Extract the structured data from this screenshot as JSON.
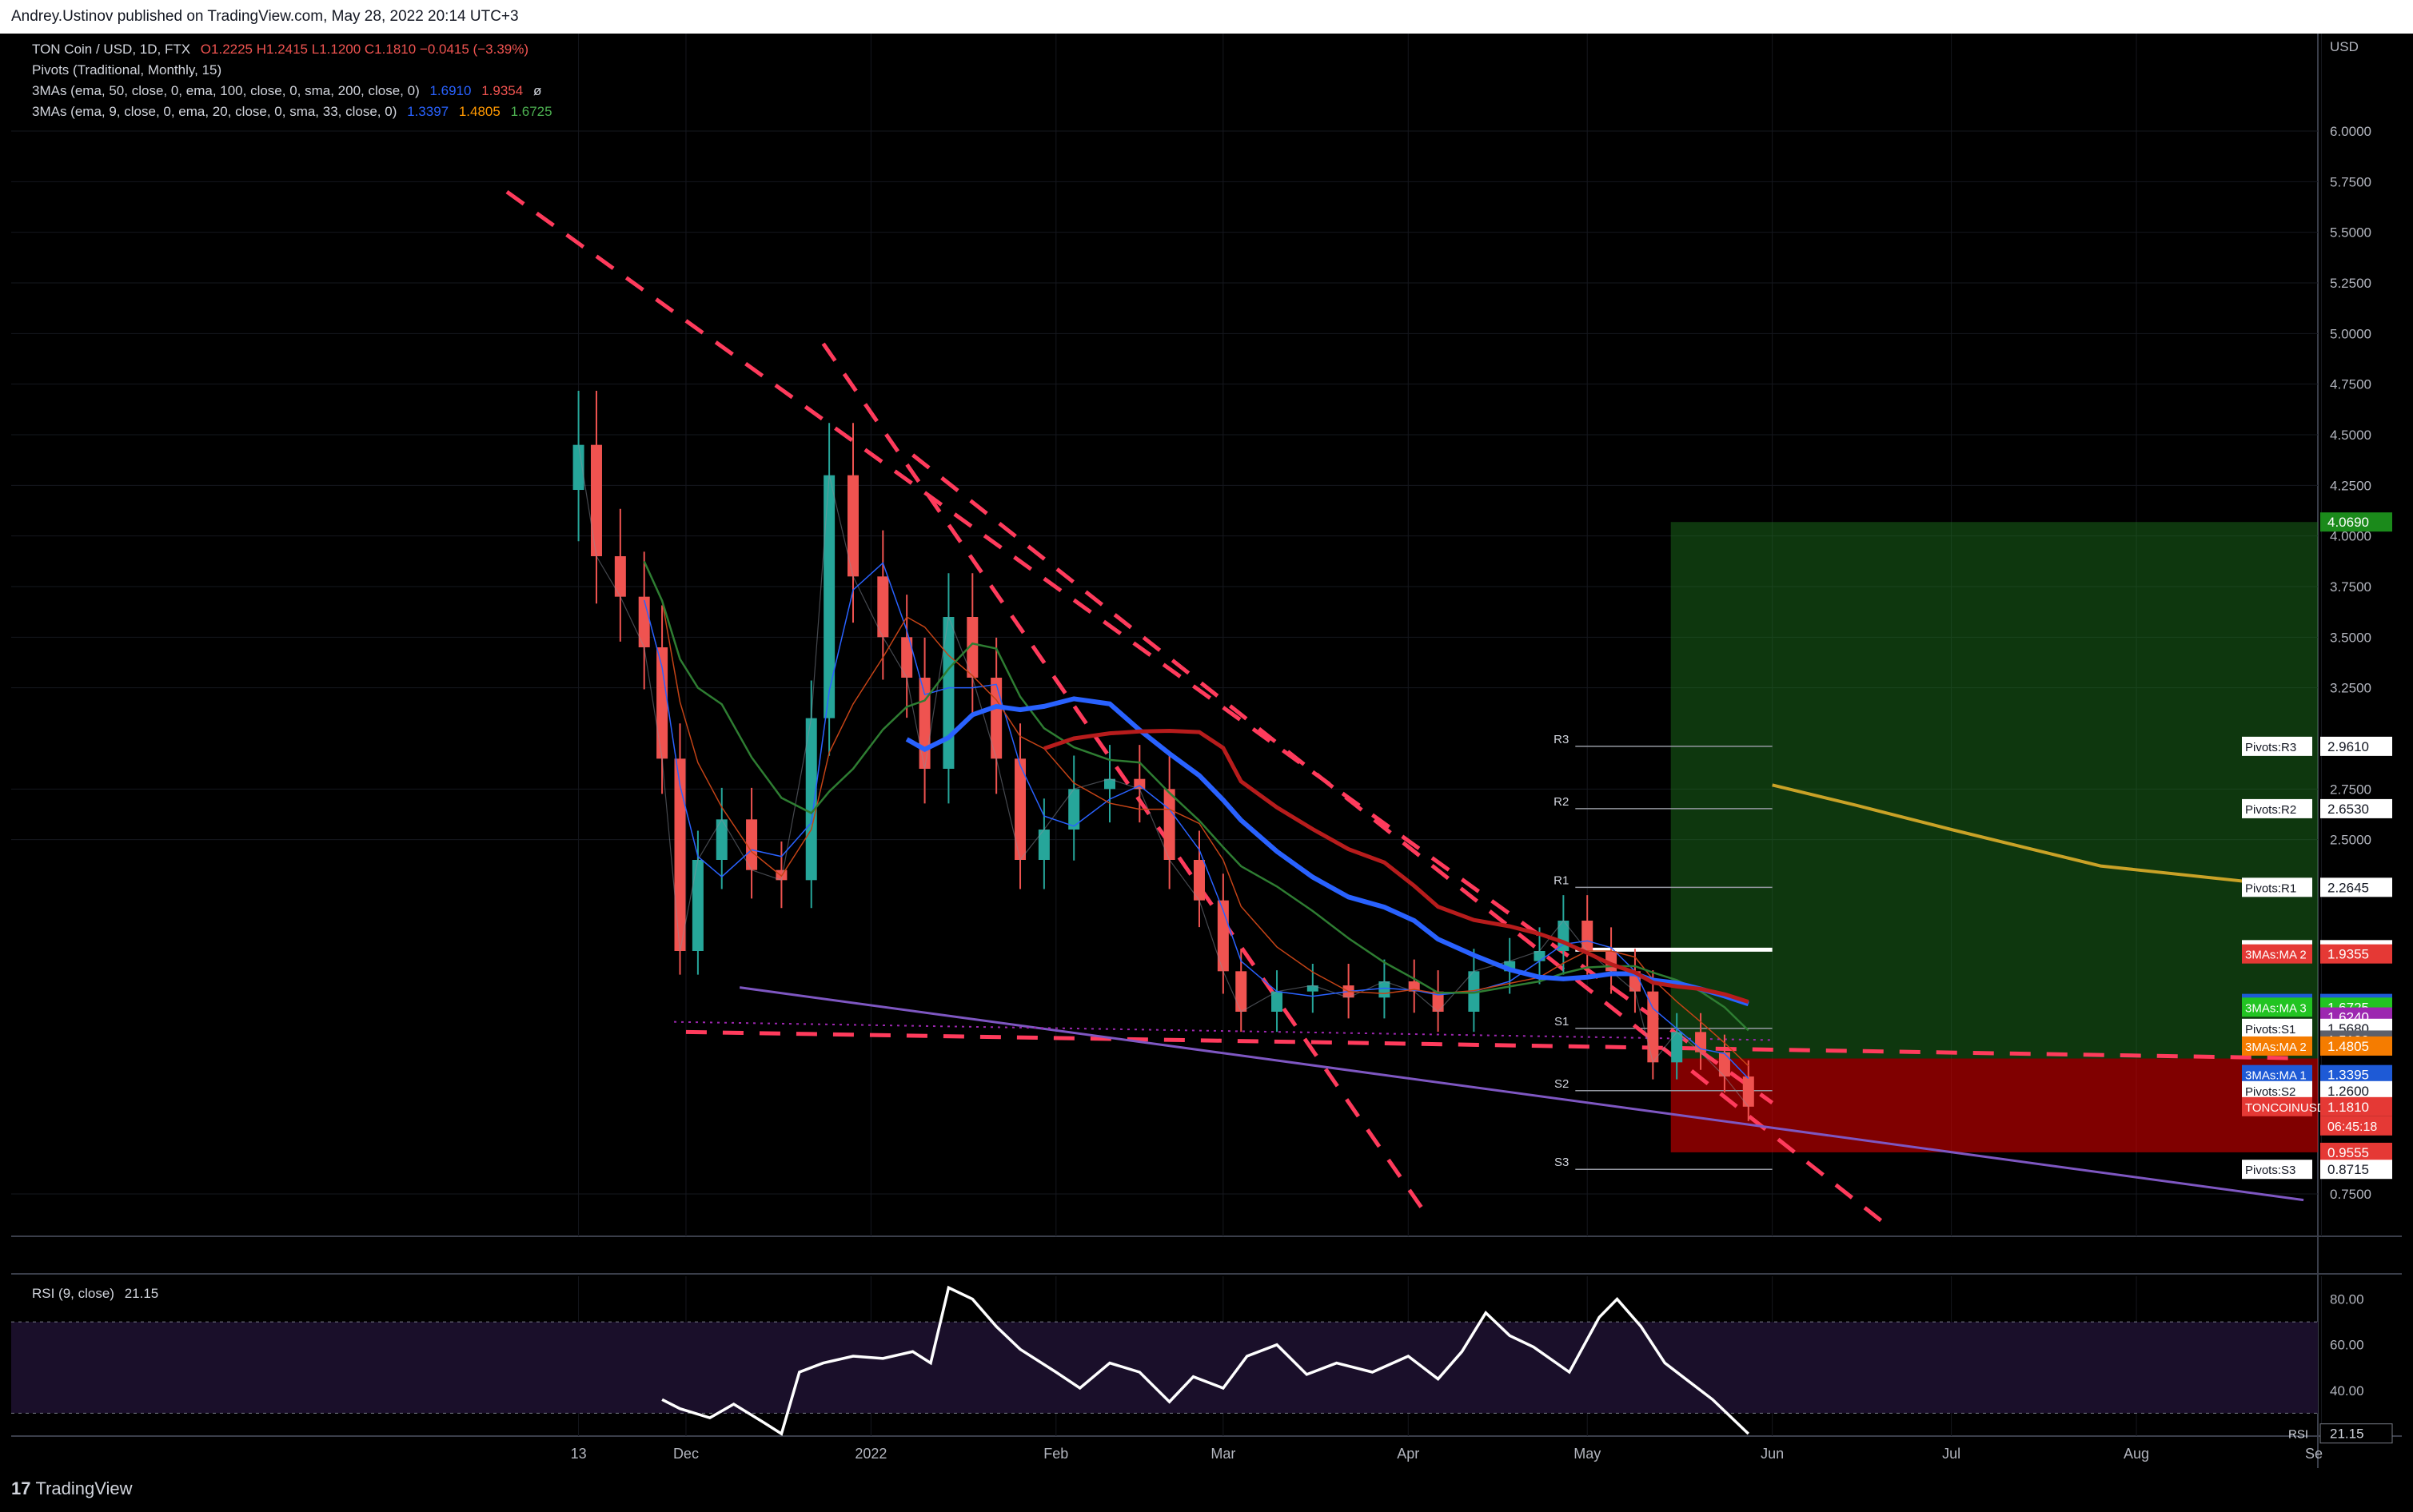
{
  "header": {
    "published": "Andrey.Ustinov published on TradingView.com, May 28, 2022 20:14 UTC+3"
  },
  "legend": {
    "symbol": "TON Coin / USD, 1D, FTX",
    "ohlc": "O1.2225  H1.2415  L1.1200  C1.1810  −0.0415 (−3.39%)",
    "pivots": "Pivots (Traditional, Monthly, 15)",
    "ma_long_label": "3MAs (ema, 50, close, 0, ema, 100, close, 0, sma, 200, close, 0)",
    "ma_long_values": [
      "1.6910",
      "1.9354",
      "ø"
    ],
    "ma_short_label": "3MAs (ema, 9, close, 0, ema, 20, close, 0, sma, 33, close, 0)",
    "ma_short_values": [
      "1.3397",
      "1.4805",
      "1.6725"
    ],
    "rsi_label": "RSI (9, close)",
    "rsi_value": "21.15"
  },
  "colors": {
    "up": "#26a69a",
    "down": "#ef5350",
    "ma_blue": "#2962ff",
    "ma_red": "#8b0000",
    "ma_green": "#1b5e20",
    "ma_orange": "#c44316",
    "trend_red": "#ff3b5c",
    "support_purple": "#7e57c2",
    "gold": "#c9a227",
    "target_green": "#1e7b1e",
    "stop_red": "#d50000"
  },
  "footer": {
    "brand": "TradingView"
  },
  "chart_data": {
    "type": "candlestick",
    "currency": "USD",
    "y_axis_ticks": [
      "6.0000",
      "5.7500",
      "5.5000",
      "5.2500",
      "5.0000",
      "4.7500",
      "4.5000",
      "4.2500",
      "4.0000",
      "3.7500",
      "3.5000",
      "3.2500",
      "2.7500",
      "2.5000",
      "0.7500"
    ],
    "x_axis_labels": [
      "13",
      "Dec",
      "2022",
      "Feb",
      "Mar",
      "Apr",
      "May",
      "Jun",
      "Jul",
      "Aug",
      "Se"
    ],
    "ylim": [
      0.6,
      6.3
    ],
    "close_series": [
      [
        "2021-11-13",
        4.45
      ],
      [
        "2021-11-16",
        3.9
      ],
      [
        "2021-11-20",
        3.7
      ],
      [
        "2021-11-24",
        3.45
      ],
      [
        "2021-11-27",
        2.9
      ],
      [
        "2021-11-30",
        1.95
      ],
      [
        "2021-12-03",
        2.4
      ],
      [
        "2021-12-07",
        2.6
      ],
      [
        "2021-12-12",
        2.35
      ],
      [
        "2021-12-17",
        2.3
      ],
      [
        "2021-12-22",
        3.1
      ],
      [
        "2021-12-25",
        4.3
      ],
      [
        "2021-12-29",
        3.8
      ],
      [
        "2022-01-03",
        3.5
      ],
      [
        "2022-01-07",
        3.3
      ],
      [
        "2022-01-10",
        2.85
      ],
      [
        "2022-01-14",
        3.6
      ],
      [
        "2022-01-18",
        3.3
      ],
      [
        "2022-01-22",
        2.9
      ],
      [
        "2022-01-26",
        2.4
      ],
      [
        "2022-01-30",
        2.55
      ],
      [
        "2022-02-04",
        2.75
      ],
      [
        "2022-02-10",
        2.8
      ],
      [
        "2022-02-15",
        2.75
      ],
      [
        "2022-02-20",
        2.4
      ],
      [
        "2022-02-25",
        2.2
      ],
      [
        "2022-03-01",
        1.85
      ],
      [
        "2022-03-04",
        1.65
      ],
      [
        "2022-03-10",
        1.75
      ],
      [
        "2022-03-16",
        1.78
      ],
      [
        "2022-03-22",
        1.72
      ],
      [
        "2022-03-28",
        1.8
      ],
      [
        "2022-04-02",
        1.75
      ],
      [
        "2022-04-06",
        1.65
      ],
      [
        "2022-04-12",
        1.85
      ],
      [
        "2022-04-18",
        1.9
      ],
      [
        "2022-04-23",
        1.95
      ],
      [
        "2022-04-27",
        2.1
      ],
      [
        "2022-05-01",
        1.95
      ],
      [
        "2022-05-05",
        1.85
      ],
      [
        "2022-05-09",
        1.75
      ],
      [
        "2022-05-12",
        1.4
      ],
      [
        "2022-05-16",
        1.55
      ],
      [
        "2022-05-20",
        1.45
      ],
      [
        "2022-05-24",
        1.33
      ],
      [
        "2022-05-28",
        1.181
      ]
    ],
    "last_bar": {
      "open": 1.2225,
      "high": 1.2415,
      "low": 1.12,
      "close": 1.181
    },
    "trendlines": [
      {
        "name": "descending-resistance",
        "points": [
          [
            "2021-11-01",
            5.7
          ],
          [
            "2022-06-01",
            1.2
          ]
        ]
      },
      {
        "name": "steep-descending",
        "points": [
          [
            "2021-12-24",
            4.95
          ],
          [
            "2022-04-04",
            0.65
          ]
        ]
      },
      {
        "name": "mid-descending",
        "points": [
          [
            "2022-01-08",
            4.4
          ],
          [
            "2022-06-20",
            0.6
          ]
        ]
      },
      {
        "name": "horizontal-support",
        "points": [
          [
            "2021-12-01",
            1.55
          ],
          [
            "2022-08-29",
            1.42
          ]
        ]
      },
      {
        "name": "purple-support",
        "points": [
          [
            "2021-12-10",
            1.77
          ],
          [
            "2022-08-29",
            0.72
          ]
        ]
      }
    ],
    "pivot_levels": [
      {
        "name": "R3",
        "value": 2.961
      },
      {
        "name": "R2",
        "value": 2.653
      },
      {
        "name": "R1",
        "value": 2.2645
      },
      {
        "name": "P",
        "value": 1.9565
      },
      {
        "name": "S1",
        "value": 1.568
      },
      {
        "name": "S2",
        "value": 1.26
      },
      {
        "name": "S3",
        "value": 0.8715
      }
    ],
    "position": {
      "entry": 1.419,
      "target": 4.069,
      "stop": 0.9555
    },
    "price_labels": [
      {
        "label": "",
        "value": "4.0690",
        "bg": "#1b8a1b",
        "fg": "#ffffff"
      },
      {
        "label": "Pivots:R3",
        "value": "2.9610",
        "bg": "#ffffff",
        "fg": "#131722"
      },
      {
        "label": "Pivots:R2",
        "value": "2.6530",
        "bg": "#ffffff",
        "fg": "#131722"
      },
      {
        "label": "Pivots:R1",
        "value": "2.2645",
        "bg": "#ffffff",
        "fg": "#131722"
      },
      {
        "label": "Pivots:P",
        "value": "1.9565",
        "bg": "#ffffff",
        "fg": "#131722"
      },
      {
        "label": "3MAs:MA 2",
        "value": "1.9355",
        "bg": "#e53935",
        "fg": "#ffffff"
      },
      {
        "label": "3MAs:MA 1",
        "value": "1.6910",
        "bg": "#1e5ad6",
        "fg": "#ffffff"
      },
      {
        "label": "3MAs:MA 3",
        "value": "1.6725",
        "bg": "#22c422",
        "fg": "#ffffff"
      },
      {
        "label": "",
        "value": "1.6240",
        "bg": "#9c27b0",
        "fg": "#ffffff"
      },
      {
        "label": "Pivots:S1",
        "value": "1.5680",
        "bg": "#ffffff",
        "fg": "#131722"
      },
      {
        "label": "",
        "value": "1.5100",
        "bg": "#5d606b",
        "fg": "#ffffff"
      },
      {
        "label": "3MAs:MA 2",
        "value": "1.4805",
        "bg": "#f57c00",
        "fg": "#ffffff"
      },
      {
        "label": "3MAs:MA 1",
        "value": "1.3395",
        "bg": "#1e5ad6",
        "fg": "#ffffff"
      },
      {
        "label": "Pivots:S2",
        "value": "1.2600",
        "bg": "#ffffff",
        "fg": "#131722"
      },
      {
        "label": "TONCOINUSD",
        "value": "1.1810",
        "bg": "#e53935",
        "fg": "#ffffff"
      },
      {
        "label": "",
        "value": "0.9555",
        "bg": "#e53935",
        "fg": "#ffffff"
      },
      {
        "label": "Pivots:S3",
        "value": "0.8715",
        "bg": "#ffffff",
        "fg": "#131722"
      }
    ],
    "countdown": "06:45:18",
    "rsi": {
      "ticks": [
        "80.00",
        "60.00",
        "40.00"
      ],
      "band": [
        30,
        70
      ],
      "values": [
        [
          "2021-11-27",
          36
        ],
        [
          "2021-11-30",
          32
        ],
        [
          "2021-12-05",
          28
        ],
        [
          "2021-12-09",
          34
        ],
        [
          "2021-12-14",
          26
        ],
        [
          "2021-12-17",
          21
        ],
        [
          "2021-12-20",
          48
        ],
        [
          "2021-12-24",
          52
        ],
        [
          "2021-12-29",
          55
        ],
        [
          "2022-01-03",
          54
        ],
        [
          "2022-01-08",
          57
        ],
        [
          "2022-01-11",
          52
        ],
        [
          "2022-01-14",
          85
        ],
        [
          "2022-01-18",
          80
        ],
        [
          "2022-01-22",
          68
        ],
        [
          "2022-01-26",
          58
        ],
        [
          "2022-02-01",
          48
        ],
        [
          "2022-02-05",
          41
        ],
        [
          "2022-02-10",
          52
        ],
        [
          "2022-02-15",
          48
        ],
        [
          "2022-02-20",
          35
        ],
        [
          "2022-02-24",
          46
        ],
        [
          "2022-03-01",
          41
        ],
        [
          "2022-03-05",
          55
        ],
        [
          "2022-03-10",
          60
        ],
        [
          "2022-03-15",
          47
        ],
        [
          "2022-03-20",
          52
        ],
        [
          "2022-03-26",
          48
        ],
        [
          "2022-04-01",
          55
        ],
        [
          "2022-04-06",
          45
        ],
        [
          "2022-04-10",
          57
        ],
        [
          "2022-04-14",
          74
        ],
        [
          "2022-04-18",
          64
        ],
        [
          "2022-04-22",
          59
        ],
        [
          "2022-04-28",
          48
        ],
        [
          "2022-05-03",
          72
        ],
        [
          "2022-05-06",
          80
        ],
        [
          "2022-05-10",
          68
        ],
        [
          "2022-05-14",
          52
        ],
        [
          "2022-05-18",
          44
        ],
        [
          "2022-05-22",
          36
        ],
        [
          "2022-05-28",
          21
        ]
      ]
    }
  }
}
